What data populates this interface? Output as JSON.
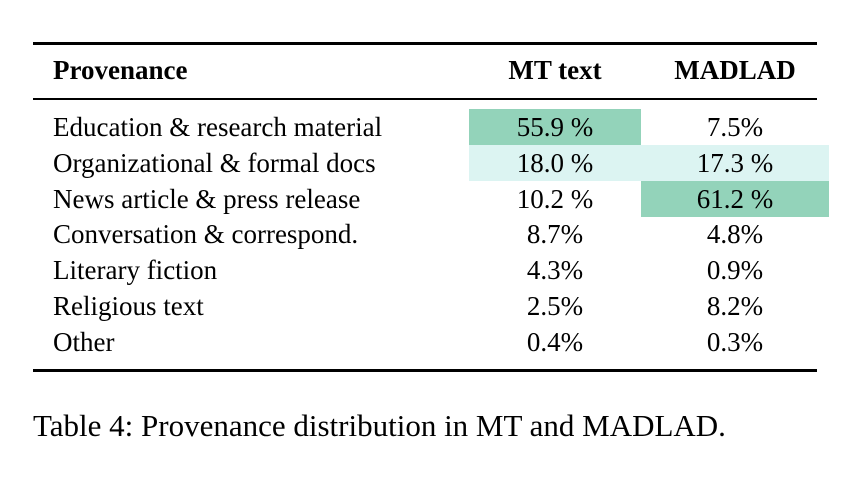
{
  "table": {
    "header": [
      "Provenance",
      "MT text",
      "MADLAD"
    ],
    "rows": [
      [
        "Education & research material",
        "55.9 %",
        "7.5%"
      ],
      [
        "Organizational & formal docs",
        "18.0 %",
        "17.3 %"
      ],
      [
        "News article & press release",
        "10.2 %",
        "61.2 %"
      ],
      [
        "Conversation & correspond.",
        "8.7%",
        "4.8%"
      ],
      [
        "Literary fiction",
        "4.3%",
        "0.9%"
      ],
      [
        "Religious text",
        "2.5%",
        "8.2%"
      ],
      [
        "Other",
        "0.4%",
        "0.3%"
      ]
    ]
  },
  "caption": "Table 4: Provenance distribution in MT and MADLAD."
}
